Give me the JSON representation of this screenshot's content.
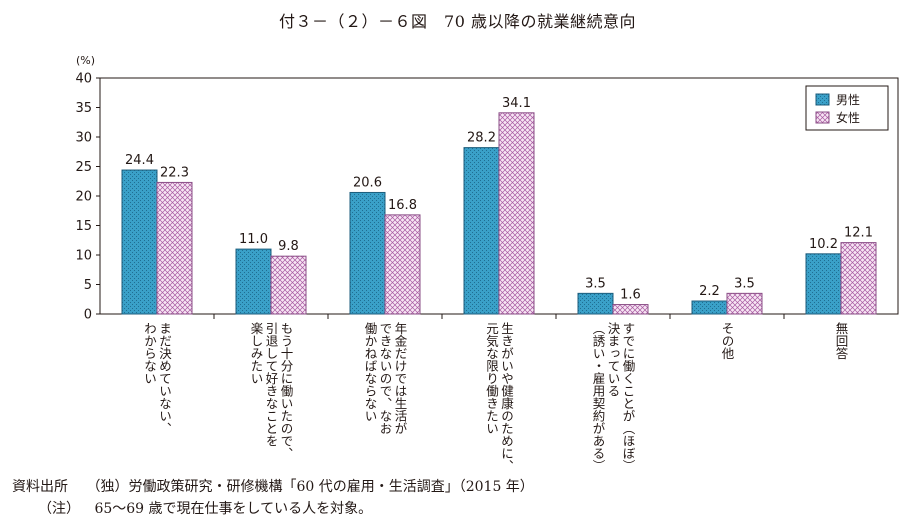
{
  "title": "付３－（２）－６図　70 歳以降の就業継続意向",
  "notes": {
    "source_label": "資料出所",
    "source_text": "（独）労働政策研究・研修機構「60 代の雇用・生活調査」（2015 年）",
    "note_label": "（注）",
    "note_text": "65～69 歳で現在仕事をしている人を対象。"
  },
  "colors": {
    "male_fill": "#3aa0c8",
    "male_stroke": "#1c5d7c",
    "female_fill": "#f3dcef",
    "female_stroke": "#8a4d86",
    "axis": "#231815"
  },
  "chart_data": {
    "type": "bar",
    "unit_label": "(%)",
    "ylim": [
      0,
      40
    ],
    "yticks": [
      0,
      5,
      10,
      15,
      20,
      25,
      30,
      35,
      40
    ],
    "grid": false,
    "legend_position": "top-right",
    "categories": [
      [
        "まだ決めていない、",
        "わからない"
      ],
      [
        "もう十分に働いたので、",
        "引退して好きなことを",
        "楽しみたい"
      ],
      [
        "年金だけでは生活が",
        "できないので、なお",
        "働かねばならない"
      ],
      [
        "生きがいや健康のために、",
        "元気な限り働きたい"
      ],
      [
        "すでに働くことが（ほぼ）",
        "決まっている",
        "（誘い・雇用契約がある）"
      ],
      [
        "その他"
      ],
      [
        "無回答"
      ]
    ],
    "series": [
      {
        "name": "男性",
        "values": [
          24.4,
          11.0,
          20.6,
          28.2,
          3.5,
          2.2,
          10.2
        ]
      },
      {
        "name": "女性",
        "values": [
          22.3,
          9.8,
          16.8,
          34.1,
          1.6,
          3.5,
          12.1
        ]
      }
    ]
  }
}
